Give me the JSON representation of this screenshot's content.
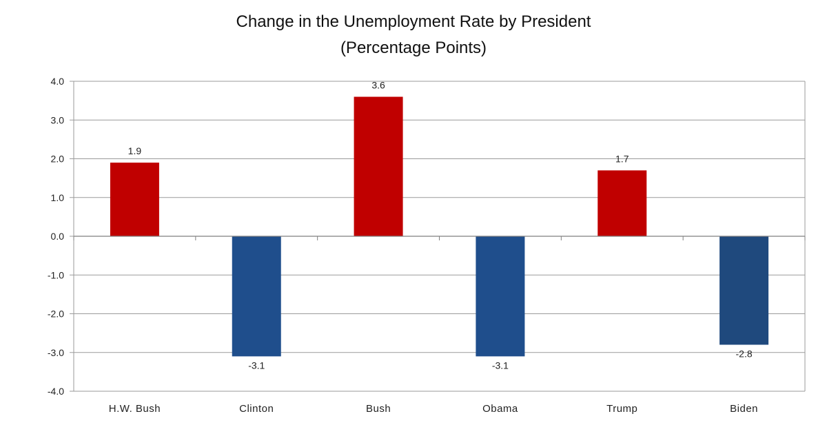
{
  "chart_data": {
    "type": "bar",
    "title": "Change in the Unemployment Rate by President",
    "subtitle": "(Percentage Points)",
    "categories": [
      "H.W. Bush",
      "Clinton",
      "Bush",
      "Obama",
      "Trump",
      "Biden"
    ],
    "values": [
      1.9,
      -3.1,
      3.6,
      -3.1,
      1.7,
      -2.8
    ],
    "data_labels": [
      "1.9",
      "-3.1",
      "3.6",
      "-3.1",
      "1.7",
      "-2.8"
    ],
    "bar_colors": [
      "#c00000",
      "#1f4e8c",
      "#c00000",
      "#1f4e8c",
      "#c00000",
      "#1f497d"
    ],
    "ylim": [
      -4,
      4
    ],
    "yticks": [
      "4.0",
      "3.0",
      "2.0",
      "1.0",
      "0.0",
      "-1.0",
      "-2.0",
      "-3.0",
      "-4.0"
    ],
    "ytick_values": [
      4,
      3,
      2,
      1,
      0,
      -1,
      -2,
      -3,
      -4
    ],
    "grid": true,
    "legend": "none",
    "xlabel": "",
    "ylabel": ""
  }
}
